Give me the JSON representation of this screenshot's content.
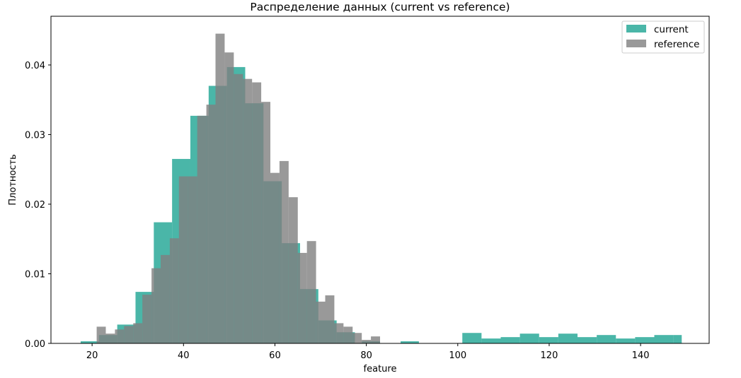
{
  "chart_data": {
    "type": "bar",
    "subtype": "overlaid histogram (density)",
    "title": "Распределение данных (current vs reference)",
    "xlabel": "feature",
    "ylabel": "Плотность",
    "xlim": [
      11,
      155
    ],
    "ylim": [
      0,
      0.047
    ],
    "xticks": [
      20,
      40,
      60,
      80,
      100,
      120,
      140
    ],
    "yticks": [
      0.0,
      0.01,
      0.02,
      0.03,
      0.04
    ],
    "ytick_labels": [
      "0.00",
      "0.01",
      "0.02",
      "0.03",
      "0.04"
    ],
    "grid": false,
    "legend_position": "top-right",
    "series": [
      {
        "name": "current",
        "color": "#2aa999",
        "opacity": 0.85,
        "bins": [
          {
            "x0": 17.5,
            "x1": 21.5,
            "y": 0.0003
          },
          {
            "x0": 21.5,
            "x1": 25.5,
            "y": 0.0012
          },
          {
            "x0": 25.5,
            "x1": 29.5,
            "y": 0.0027
          },
          {
            "x0": 29.5,
            "x1": 33.5,
            "y": 0.0074
          },
          {
            "x0": 33.5,
            "x1": 37.5,
            "y": 0.0174
          },
          {
            "x0": 37.5,
            "x1": 41.5,
            "y": 0.0265
          },
          {
            "x0": 41.5,
            "x1": 45.5,
            "y": 0.0327
          },
          {
            "x0": 45.5,
            "x1": 49.5,
            "y": 0.037
          },
          {
            "x0": 49.5,
            "x1": 53.5,
            "y": 0.0397
          },
          {
            "x0": 53.5,
            "x1": 57.5,
            "y": 0.0345
          },
          {
            "x0": 57.5,
            "x1": 61.5,
            "y": 0.0233
          },
          {
            "x0": 61.5,
            "x1": 65.5,
            "y": 0.0144
          },
          {
            "x0": 65.5,
            "x1": 69.5,
            "y": 0.0078
          },
          {
            "x0": 69.5,
            "x1": 73.5,
            "y": 0.0033
          },
          {
            "x0": 73.5,
            "x1": 77.5,
            "y": 0.0016
          },
          {
            "x0": 79.0,
            "x1": 83.0,
            "y": 0.0003
          },
          {
            "x0": 87.5,
            "x1": 91.5,
            "y": 0.0003
          },
          {
            "x0": 101.0,
            "x1": 105.2,
            "y": 0.0015
          },
          {
            "x0": 105.2,
            "x1": 109.4,
            "y": 0.0007
          },
          {
            "x0": 109.4,
            "x1": 113.6,
            "y": 0.0009
          },
          {
            "x0": 113.6,
            "x1": 117.8,
            "y": 0.0014
          },
          {
            "x0": 117.8,
            "x1": 122.0,
            "y": 0.0009
          },
          {
            "x0": 122.0,
            "x1": 126.2,
            "y": 0.0014
          },
          {
            "x0": 126.2,
            "x1": 130.4,
            "y": 0.0009
          },
          {
            "x0": 130.4,
            "x1": 134.6,
            "y": 0.0012
          },
          {
            "x0": 134.6,
            "x1": 138.8,
            "y": 0.0007
          },
          {
            "x0": 138.8,
            "x1": 143.0,
            "y": 0.0009
          },
          {
            "x0": 143.0,
            "x1": 147.2,
            "y": 0.0012
          },
          {
            "x0": 147.2,
            "x1": 149.0,
            "y": 0.0012
          }
        ]
      },
      {
        "name": "reference",
        "color": "#7f7f7f",
        "opacity": 0.8,
        "bins": [
          {
            "x0": 21.0,
            "x1": 23.0,
            "y": 0.0024
          },
          {
            "x0": 23.0,
            "x1": 25.0,
            "y": 0.0014
          },
          {
            "x0": 25.0,
            "x1": 27.0,
            "y": 0.002
          },
          {
            "x0": 27.0,
            "x1": 29.0,
            "y": 0.0025
          },
          {
            "x0": 29.0,
            "x1": 31.0,
            "y": 0.0029
          },
          {
            "x0": 31.0,
            "x1": 33.0,
            "y": 0.007
          },
          {
            "x0": 33.0,
            "x1": 35.0,
            "y": 0.0108
          },
          {
            "x0": 35.0,
            "x1": 37.0,
            "y": 0.0127
          },
          {
            "x0": 37.0,
            "x1": 39.0,
            "y": 0.0151
          },
          {
            "x0": 39.0,
            "x1": 41.0,
            "y": 0.024
          },
          {
            "x0": 41.0,
            "x1": 43.0,
            "y": 0.024
          },
          {
            "x0": 43.0,
            "x1": 45.0,
            "y": 0.0327
          },
          {
            "x0": 45.0,
            "x1": 47.0,
            "y": 0.0343
          },
          {
            "x0": 47.0,
            "x1": 49.0,
            "y": 0.0445
          },
          {
            "x0": 49.0,
            "x1": 51.0,
            "y": 0.0418
          },
          {
            "x0": 51.0,
            "x1": 53.0,
            "y": 0.0387
          },
          {
            "x0": 53.0,
            "x1": 55.0,
            "y": 0.038
          },
          {
            "x0": 55.0,
            "x1": 57.0,
            "y": 0.0375
          },
          {
            "x0": 57.0,
            "x1": 59.0,
            "y": 0.0347
          },
          {
            "x0": 59.0,
            "x1": 61.0,
            "y": 0.0245
          },
          {
            "x0": 61.0,
            "x1": 63.0,
            "y": 0.0262
          },
          {
            "x0": 63.0,
            "x1": 65.0,
            "y": 0.021
          },
          {
            "x0": 65.0,
            "x1": 67.0,
            "y": 0.013
          },
          {
            "x0": 67.0,
            "x1": 69.0,
            "y": 0.0147
          },
          {
            "x0": 69.0,
            "x1": 71.0,
            "y": 0.006
          },
          {
            "x0": 71.0,
            "x1": 73.0,
            "y": 0.0069
          },
          {
            "x0": 73.0,
            "x1": 75.0,
            "y": 0.0029
          },
          {
            "x0": 75.0,
            "x1": 77.0,
            "y": 0.0024
          },
          {
            "x0": 77.0,
            "x1": 79.0,
            "y": 0.0015
          },
          {
            "x0": 79.0,
            "x1": 81.0,
            "y": 0.0005
          },
          {
            "x0": 81.0,
            "x1": 83.0,
            "y": 0.001
          }
        ]
      }
    ]
  }
}
